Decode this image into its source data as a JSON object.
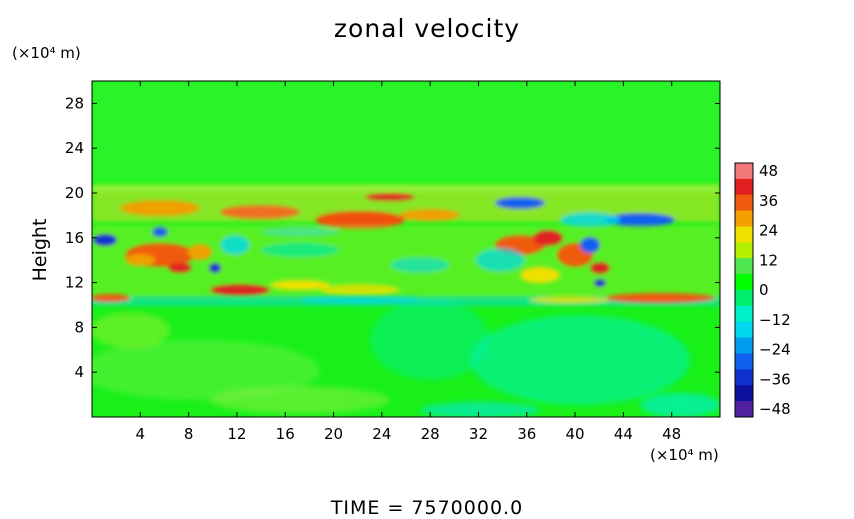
{
  "chart_data": {
    "type": "heatmap",
    "title": "zonal velocity",
    "ylabel": "Height",
    "xlabel": "",
    "x_unit": "(×10⁴ m)",
    "y_unit": "(×10⁴ m)",
    "footer": "TIME  =  7570000.0",
    "xlim": [
      0,
      52
    ],
    "ylim": [
      0,
      30
    ],
    "x_ticks": [
      "4",
      "8",
      "12",
      "16",
      "20",
      "24",
      "28",
      "32",
      "36",
      "40",
      "44",
      "48"
    ],
    "y_ticks": [
      "4",
      "8",
      "12",
      "16",
      "20",
      "24",
      "28"
    ],
    "colorbar": {
      "min": -48,
      "max": 48,
      "ticks": [
        "48",
        "36",
        "24",
        "12",
        "0",
        "−12",
        "−24",
        "−36",
        "−48"
      ],
      "colors": [
        "#f07878",
        "#e02020",
        "#f05a10",
        "#f5a000",
        "#f0e000",
        "#b4f000",
        "#50e850",
        "#00ff00",
        "#00ee70",
        "#00f0c8",
        "#00d8f0",
        "#009cf0",
        "#1060f0",
        "#1030d0",
        "#1010a0",
        "#5020a0"
      ]
    },
    "background_color": "#18f018"
  }
}
